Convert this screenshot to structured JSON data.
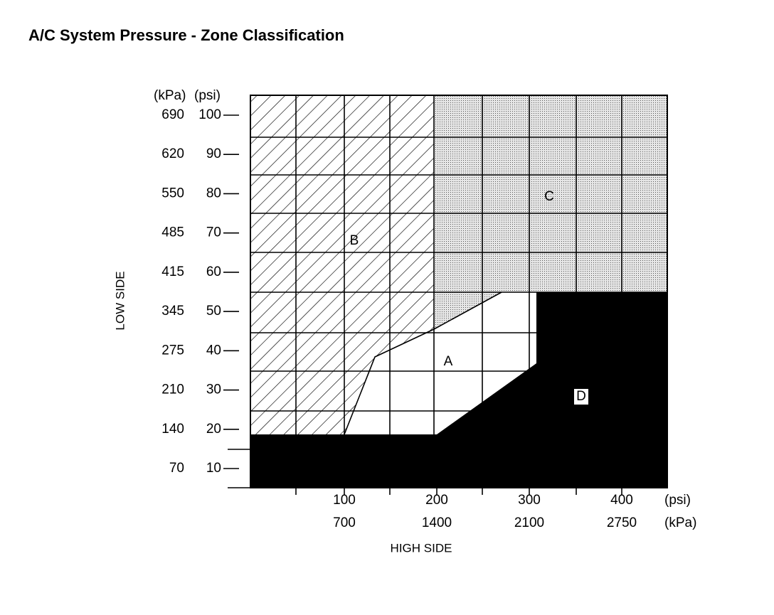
{
  "title": "A/C System Pressure - Zone Classification",
  "y_axis": {
    "label": "LOW SIDE",
    "unit_kpa": "(kPa)",
    "unit_psi": "(psi)",
    "ticks": [
      {
        "psi": 100,
        "kpa": 690
      },
      {
        "psi": 90,
        "kpa": 620
      },
      {
        "psi": 80,
        "kpa": 550
      },
      {
        "psi": 70,
        "kpa": 485
      },
      {
        "psi": 60,
        "kpa": 415
      },
      {
        "psi": 50,
        "kpa": 345
      },
      {
        "psi": 40,
        "kpa": 275
      },
      {
        "psi": 30,
        "kpa": 210
      },
      {
        "psi": 20,
        "kpa": 140
      },
      {
        "psi": 10,
        "kpa": 70
      }
    ]
  },
  "x_axis": {
    "label": "HIGH SIDE",
    "unit_psi": "(psi)",
    "unit_kpa": "(kPa)",
    "ticks": [
      {
        "psi": 100,
        "kpa": 700
      },
      {
        "psi": 200,
        "kpa": 1400
      },
      {
        "psi": 300,
        "kpa": 2100
      },
      {
        "psi": 400,
        "kpa": 2750
      }
    ]
  },
  "zones": {
    "a": "A",
    "b": "B",
    "c": "C",
    "d": "D"
  }
}
